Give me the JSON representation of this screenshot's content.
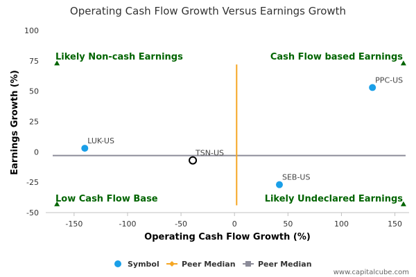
{
  "chart_data": {
    "type": "scatter",
    "title": "Operating Cash Flow Growth Versus Earnings Growth",
    "xlabel": "Operating Cash Flow Growth (%)",
    "ylabel": "Earnings Growth (%)",
    "xlim": [
      -170,
      160
    ],
    "ylim": [
      -50,
      100
    ],
    "x_ticks": [
      -150,
      -100,
      -50,
      0,
      50,
      100,
      150
    ],
    "y_ticks": [
      100,
      75,
      50,
      25,
      0,
      -25,
      -50
    ],
    "grid": false,
    "points": [
      {
        "label": "PPC-US",
        "x": 129,
        "y": 53,
        "style": "filled"
      },
      {
        "label": "LUK-US",
        "x": -140,
        "y": 3,
        "style": "filled"
      },
      {
        "label": "SEB-US",
        "x": 42,
        "y": -27,
        "style": "filled"
      },
      {
        "label": "TSN-US",
        "x": -39,
        "y": -7,
        "style": "hollow"
      }
    ],
    "peer_median_x": 2,
    "peer_median_y": -3,
    "quadrant_labels": {
      "top_left": "Likely Non-cash Earnings",
      "top_right": "Cash Flow based Earnings",
      "bottom_left": "Low Cash Flow Base",
      "bottom_right": "Likely Undeclared Earnings"
    },
    "legend": [
      {
        "label": "Symbol",
        "color": "#1a9fe8"
      },
      {
        "label": "Peer Median",
        "color": "#f5a623"
      },
      {
        "label": "Peer Median",
        "color": "#8c8c99"
      }
    ],
    "legend_position": "bottom",
    "colors": {
      "point": "#1a9fe8",
      "vertical_median": "#f5a623",
      "horizontal_median": "#8c8c99",
      "quadrant_text": "#006400"
    }
  },
  "credit": "www.capitalcube.com"
}
